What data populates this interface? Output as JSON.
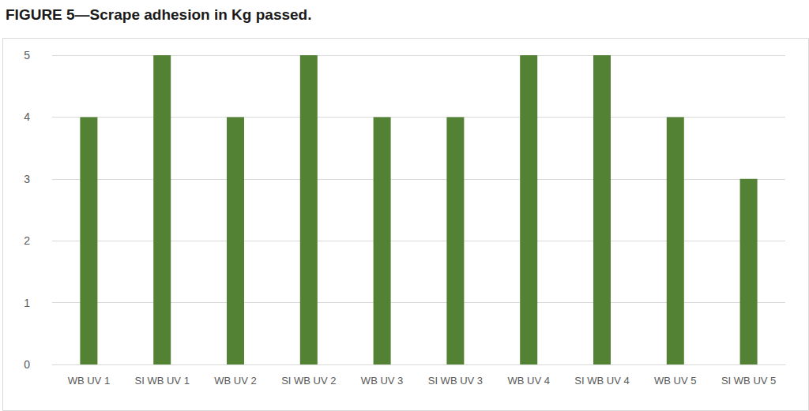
{
  "chart_data": {
    "type": "bar",
    "title": "FIGURE 5—Scrape adhesion in Kg passed.",
    "categories": [
      "WB UV 1",
      "SI WB UV 1",
      "WB UV 2",
      "SI WB UV 2",
      "WB UV 3",
      "SI WB UV 3",
      "WB UV 4",
      "SI WB UV 4",
      "WB UV 5",
      "SI WB UV 5"
    ],
    "values": [
      4,
      5,
      4,
      5,
      4,
      4,
      5,
      5,
      4,
      3
    ],
    "color": "#548235",
    "ylim": [
      0,
      5
    ],
    "yticks": [
      0,
      1,
      2,
      3,
      4,
      5
    ],
    "grid": true
  }
}
